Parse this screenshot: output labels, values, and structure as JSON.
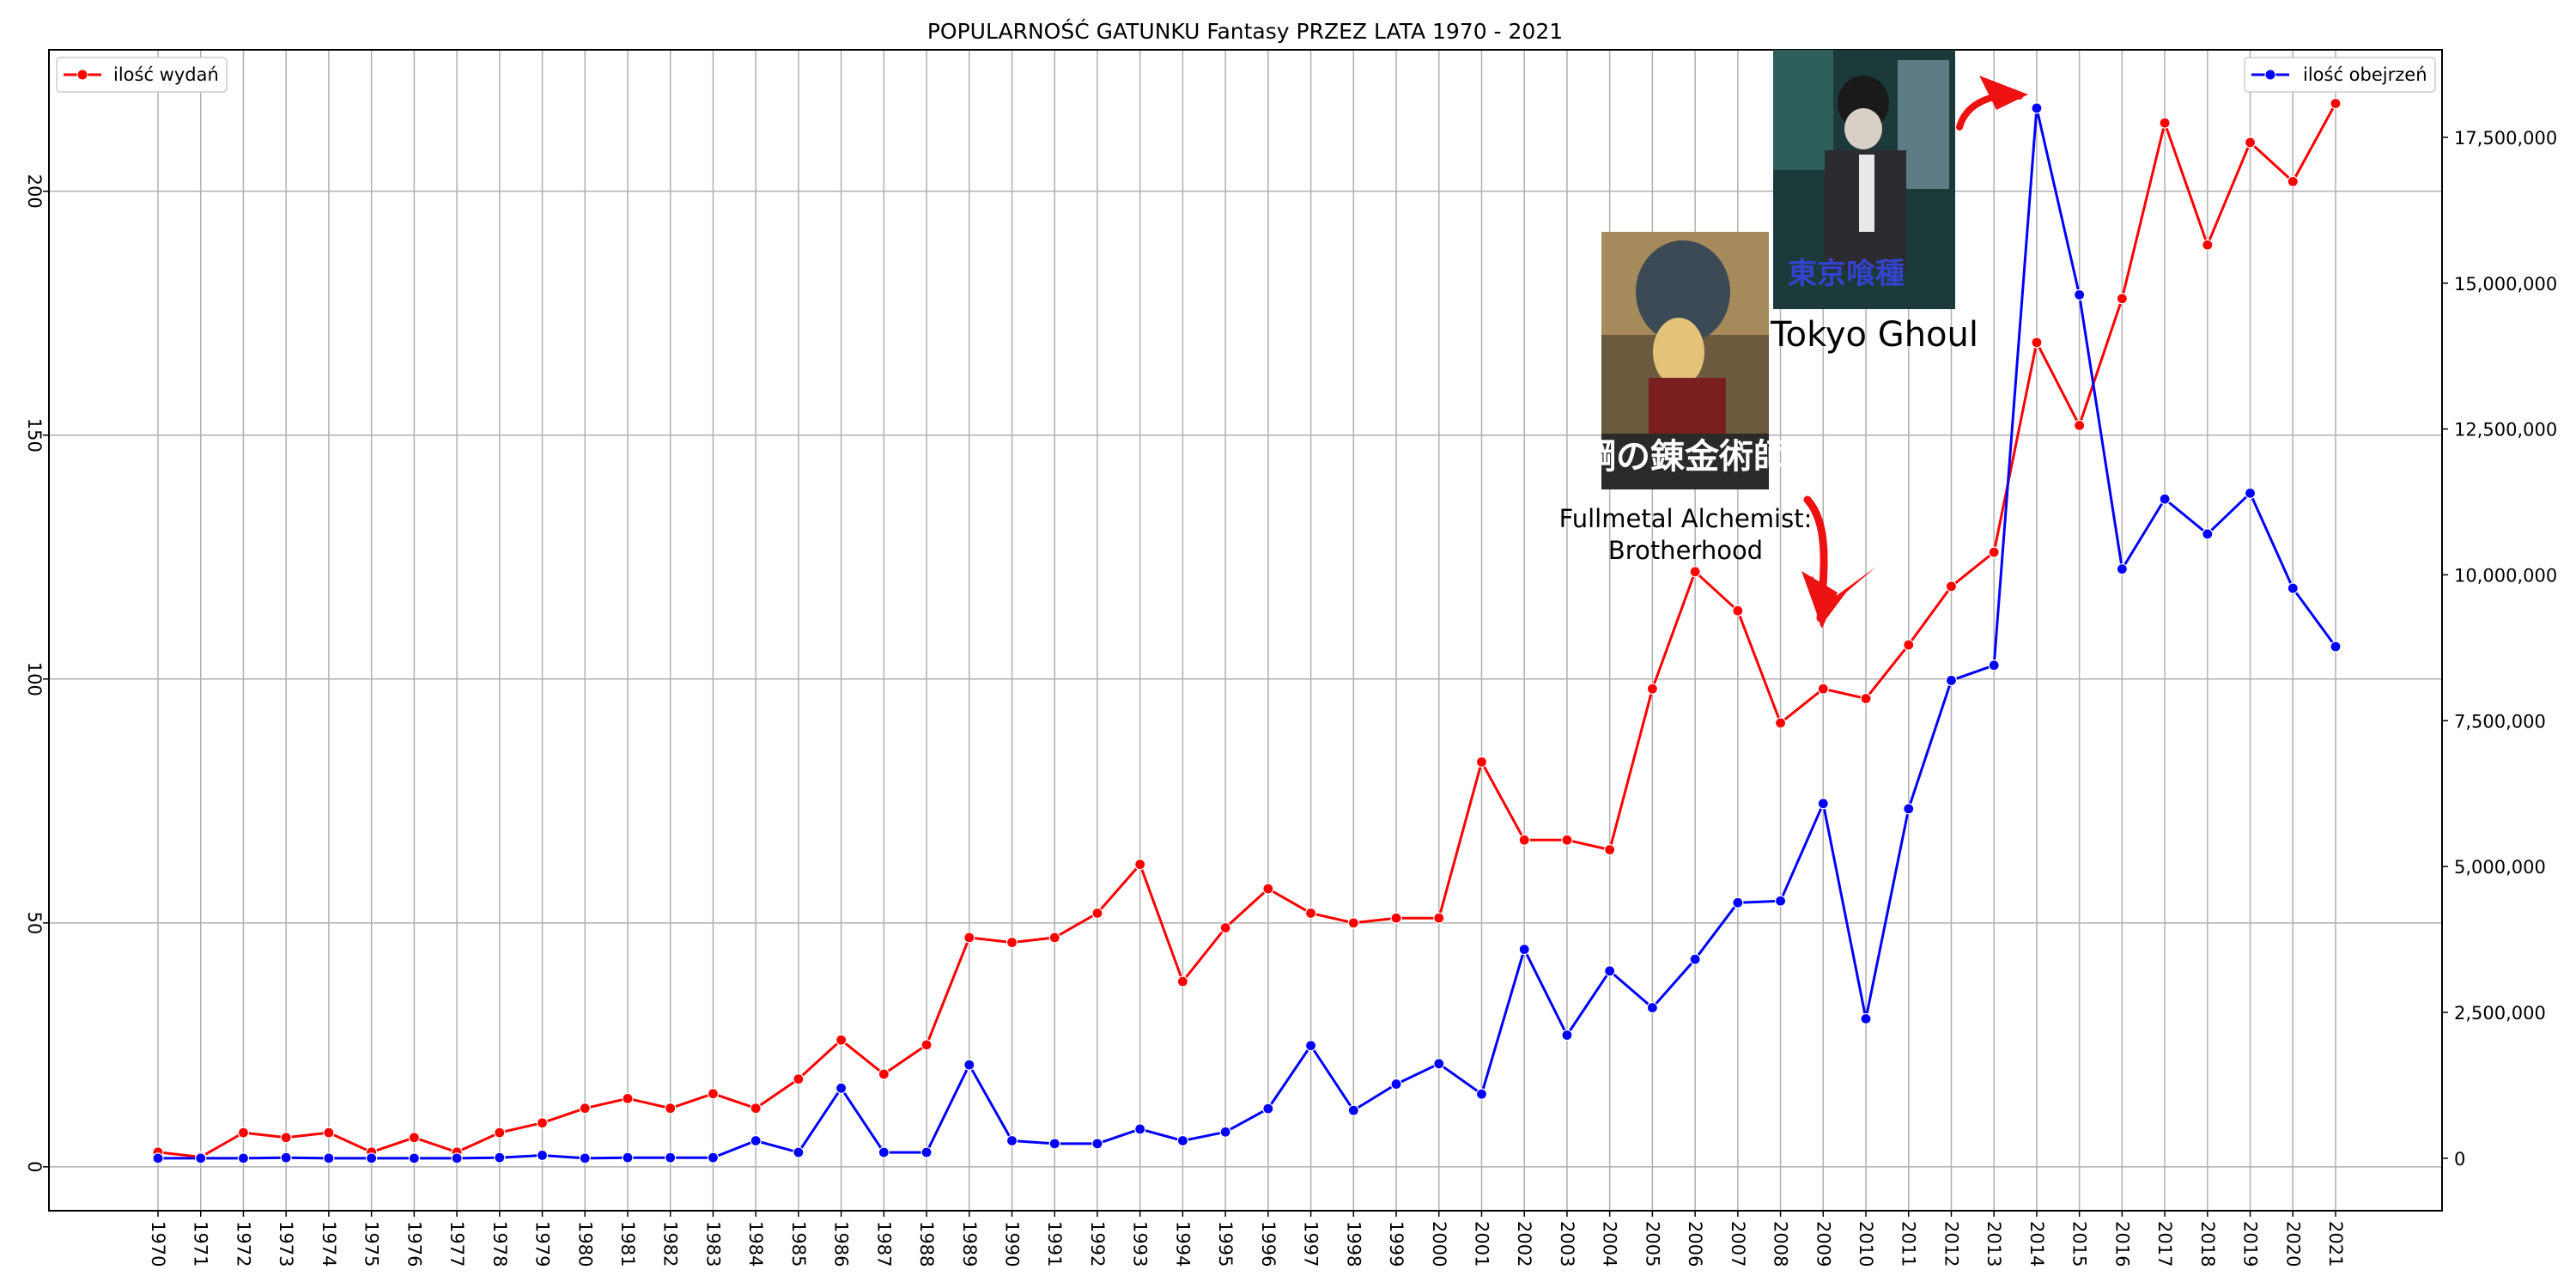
{
  "chart_data": {
    "type": "line",
    "title": "POPULARNOŚĆ GATUNKU Fantasy PRZEZ LATA 1970 - 2021",
    "x": [
      "1970",
      "1971",
      "1972",
      "1973",
      "1974",
      "1975",
      "1976",
      "1977",
      "1978",
      "1979",
      "1980",
      "1981",
      "1982",
      "1983",
      "1984",
      "1985",
      "1986",
      "1987",
      "1988",
      "1989",
      "1990",
      "1991",
      "1992",
      "1993",
      "1994",
      "1995",
      "1996",
      "1997",
      "1998",
      "1999",
      "2000",
      "2001",
      "2002",
      "2003",
      "2004",
      "2005",
      "2006",
      "2007",
      "2008",
      "2009",
      "2010",
      "2011",
      "2012",
      "2013",
      "2014",
      "2015",
      "2016",
      "2017",
      "2018",
      "2019",
      "2020",
      "2021"
    ],
    "ylim_left": [
      -9,
      229
    ],
    "ylim_right": [
      -900000,
      19000000
    ],
    "yticks_left": [
      0,
      50,
      100,
      150,
      200
    ],
    "yticks_right": [
      "0",
      "2,500,000",
      "5,000,000",
      "7,500,000",
      "10,000,000",
      "12,500,000",
      "15,000,000",
      "17,500,000"
    ],
    "yticks_right_values": [
      0,
      2500000,
      5000000,
      7500000,
      10000000,
      12500000,
      15000000,
      17500000
    ],
    "grid": true,
    "series": [
      {
        "name": "ilość wydań",
        "axis": "left",
        "color": "#ff0000",
        "legend_position": "top-left",
        "values": [
          3,
          2,
          7,
          6,
          7,
          3,
          6,
          3,
          7,
          9,
          12,
          14,
          12,
          15,
          12,
          18,
          26,
          19,
          25,
          47,
          46,
          47,
          52,
          62,
          38,
          49,
          57,
          52,
          50,
          51,
          51,
          83,
          67,
          67,
          65,
          98,
          122,
          114,
          91,
          98,
          96,
          107,
          119,
          126,
          169,
          152,
          178,
          214,
          189,
          210,
          202,
          218
        ]
      },
      {
        "name": "ilość obejrzeń",
        "axis": "right",
        "color": "#0000ff",
        "legend_position": "top-right",
        "values": [
          0,
          0,
          0,
          10000,
          0,
          0,
          0,
          0,
          10000,
          50000,
          0,
          10000,
          10000,
          10000,
          300000,
          100000,
          1200000,
          100000,
          100000,
          1600000,
          300000,
          250000,
          250000,
          500000,
          300000,
          450000,
          850000,
          1930000,
          820000,
          1270000,
          1620000,
          1100000,
          3580000,
          2110000,
          3210000,
          2580000,
          3410000,
          4380000,
          4410000,
          6080000,
          2390000,
          5990000,
          8190000,
          8450000,
          18000000,
          14800000,
          10100000,
          11300000,
          10700000,
          11400000,
          9770000,
          8770000
        ]
      }
    ],
    "annotations": [
      {
        "text_line1": "Fullmetal Alchemist:",
        "text_line2": "Brotherhood",
        "points_to": "2009"
      },
      {
        "text": "Tokyo Ghoul",
        "points_to": "2014"
      }
    ]
  }
}
